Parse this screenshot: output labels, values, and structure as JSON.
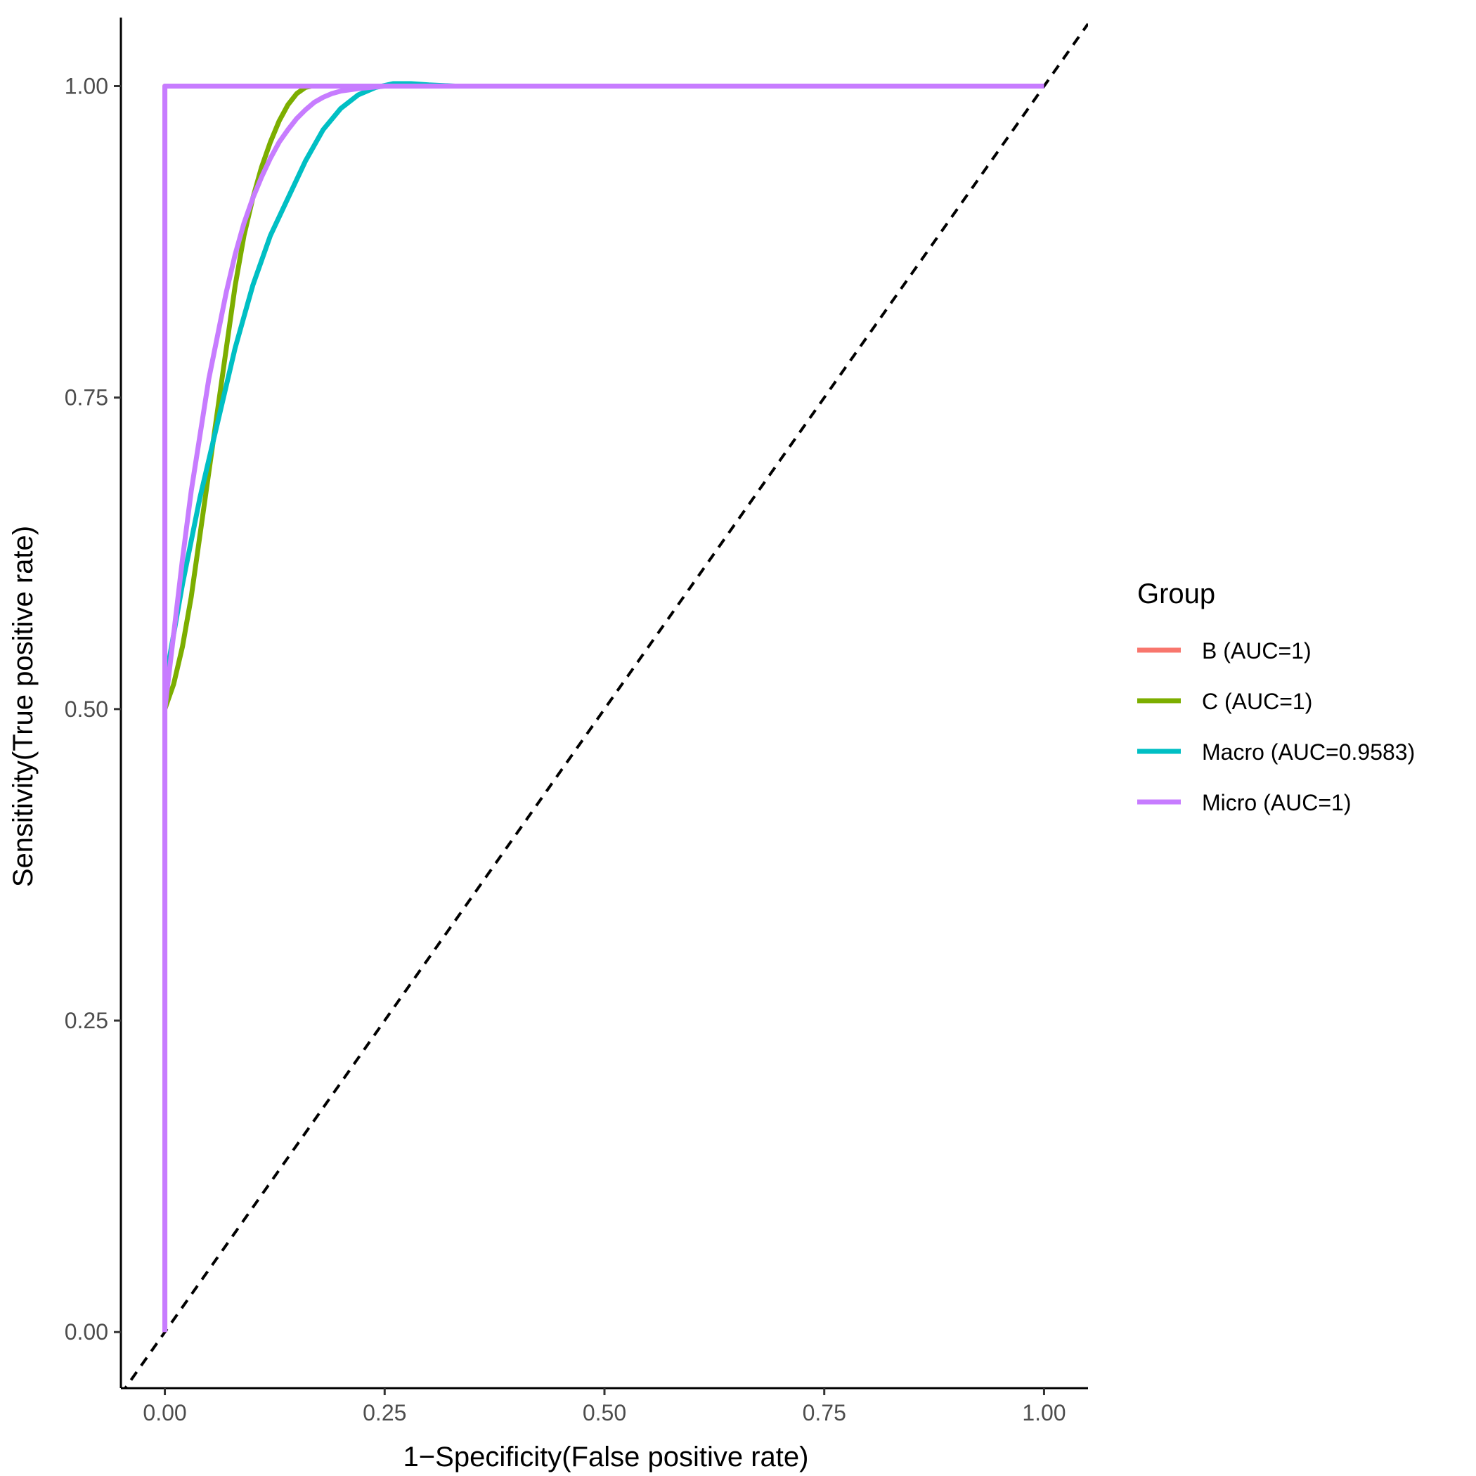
{
  "chart_data": {
    "type": "line",
    "title": "",
    "xlabel": "1−Specificity(False positive rate)",
    "ylabel": "Sensitivity(True positive rate)",
    "xlim": [
      -0.05,
      1.05
    ],
    "ylim": [
      -0.045,
      1.055
    ],
    "xticks": [
      0,
      0.25,
      0.5,
      0.75,
      1
    ],
    "yticks": [
      0,
      0.25,
      0.5,
      0.75,
      1
    ],
    "xtick_labels": [
      "0.00",
      "0.25",
      "0.50",
      "0.75",
      "1.00"
    ],
    "ytick_labels": [
      "0.00",
      "0.25",
      "0.50",
      "0.75",
      "1.00"
    ],
    "grid": false,
    "legend": {
      "title": "Group",
      "position": "right",
      "entries": [
        {
          "label": "B (AUC=1)",
          "color": "#F8766D"
        },
        {
          "label": "C (AUC=1)",
          "color": "#7CAE00"
        },
        {
          "label": "Macro (AUC=0.9583)",
          "color": "#00BFC4"
        },
        {
          "label": "Micro (AUC=1)",
          "color": "#C77CFF"
        }
      ]
    },
    "reference_line": {
      "x": [
        -0.05,
        1.05
      ],
      "y": [
        -0.05,
        1.05
      ],
      "style": "dashed",
      "color": "#000000"
    },
    "series": [
      {
        "name": "B (AUC=1)",
        "color": "#F8766D",
        "x": [
          0,
          0,
          1
        ],
        "y": [
          0,
          1,
          1
        ]
      },
      {
        "name": "C (AUC=1)",
        "color": "#7CAE00",
        "x": [
          0,
          0.01,
          0.02,
          0.03,
          0.04,
          0.05,
          0.06,
          0.07,
          0.08,
          0.09,
          0.1,
          0.11,
          0.12,
          0.13,
          0.14,
          0.15,
          0.16,
          0.167,
          0.2,
          0.3,
          0.5,
          0.75,
          1.0
        ],
        "y": [
          0.5,
          0.52,
          0.55,
          0.59,
          0.64,
          0.69,
          0.74,
          0.79,
          0.84,
          0.88,
          0.91,
          0.935,
          0.955,
          0.972,
          0.985,
          0.994,
          0.999,
          1.0,
          1.0,
          1.0,
          1.0,
          1.0,
          1.0
        ]
      },
      {
        "name": "Macro (AUC=0.9583)",
        "color": "#00BFC4",
        "x": [
          0,
          0.02,
          0.04,
          0.06,
          0.08,
          0.1,
          0.12,
          0.14,
          0.16,
          0.18,
          0.2,
          0.22,
          0.24,
          0.26,
          0.28,
          0.3,
          0.33,
          0.4,
          0.6,
          0.8,
          1.0
        ],
        "y": [
          0.52,
          0.6,
          0.67,
          0.73,
          0.79,
          0.84,
          0.88,
          0.91,
          0.94,
          0.965,
          0.982,
          0.993,
          0.999,
          1.002,
          1.002,
          1.001,
          1.0,
          1.0,
          1.0,
          1.0,
          1.0
        ]
      },
      {
        "name": "Micro (AUC=1)",
        "color": "#C77CFF",
        "x": [
          0,
          0,
          1
        ],
        "y": [
          0,
          1,
          1
        ]
      },
      {
        "name": "Micro (AUC=1) smooth",
        "color": "#C77CFF",
        "x": [
          0,
          0.01,
          0.02,
          0.03,
          0.04,
          0.05,
          0.06,
          0.07,
          0.08,
          0.09,
          0.1,
          0.11,
          0.12,
          0.13,
          0.14,
          0.15,
          0.16,
          0.17,
          0.18,
          0.19,
          0.2,
          0.22,
          0.25,
          0.3,
          1.0
        ],
        "y": [
          0.5,
          0.56,
          0.62,
          0.675,
          0.72,
          0.765,
          0.8,
          0.835,
          0.865,
          0.89,
          0.91,
          0.927,
          0.942,
          0.955,
          0.965,
          0.974,
          0.981,
          0.987,
          0.991,
          0.994,
          0.996,
          0.998,
          1.0,
          1.0,
          1.0
        ]
      }
    ]
  }
}
